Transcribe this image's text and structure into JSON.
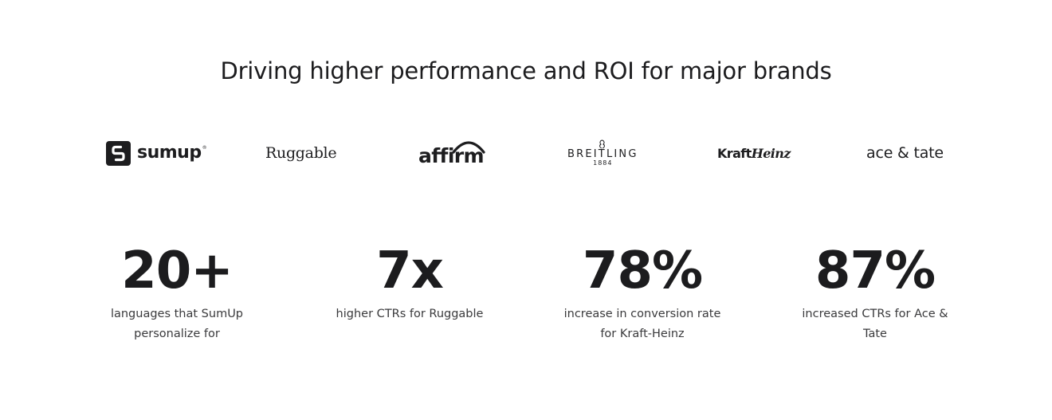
{
  "headline": "Driving higher performance and ROI for major brands",
  "brands": {
    "sumup": {
      "name": "sumup",
      "mark": "®"
    },
    "ruggable": {
      "name": "Ruggable"
    },
    "affirm": {
      "name": "affirm"
    },
    "breitling": {
      "name": "BREITLING",
      "year": "1884"
    },
    "kraft_heinz": {
      "part1": "Kraft",
      "part2": "Heinz"
    },
    "ace_and_tate": {
      "name": "ace & tate"
    }
  },
  "stats": [
    {
      "value": "20+",
      "description": "languages that SumUp personalize for"
    },
    {
      "value": "7x",
      "description": "higher CTRs for Ruggable"
    },
    {
      "value": "78%",
      "description": "increase in conversion rate for Kraft-Heinz"
    },
    {
      "value": "87%",
      "description": "increased CTRs for Ace & Tate"
    }
  ],
  "colors": {
    "text": "#1c1c1e",
    "muted": "#3a3a3c",
    "background": "#ffffff"
  }
}
